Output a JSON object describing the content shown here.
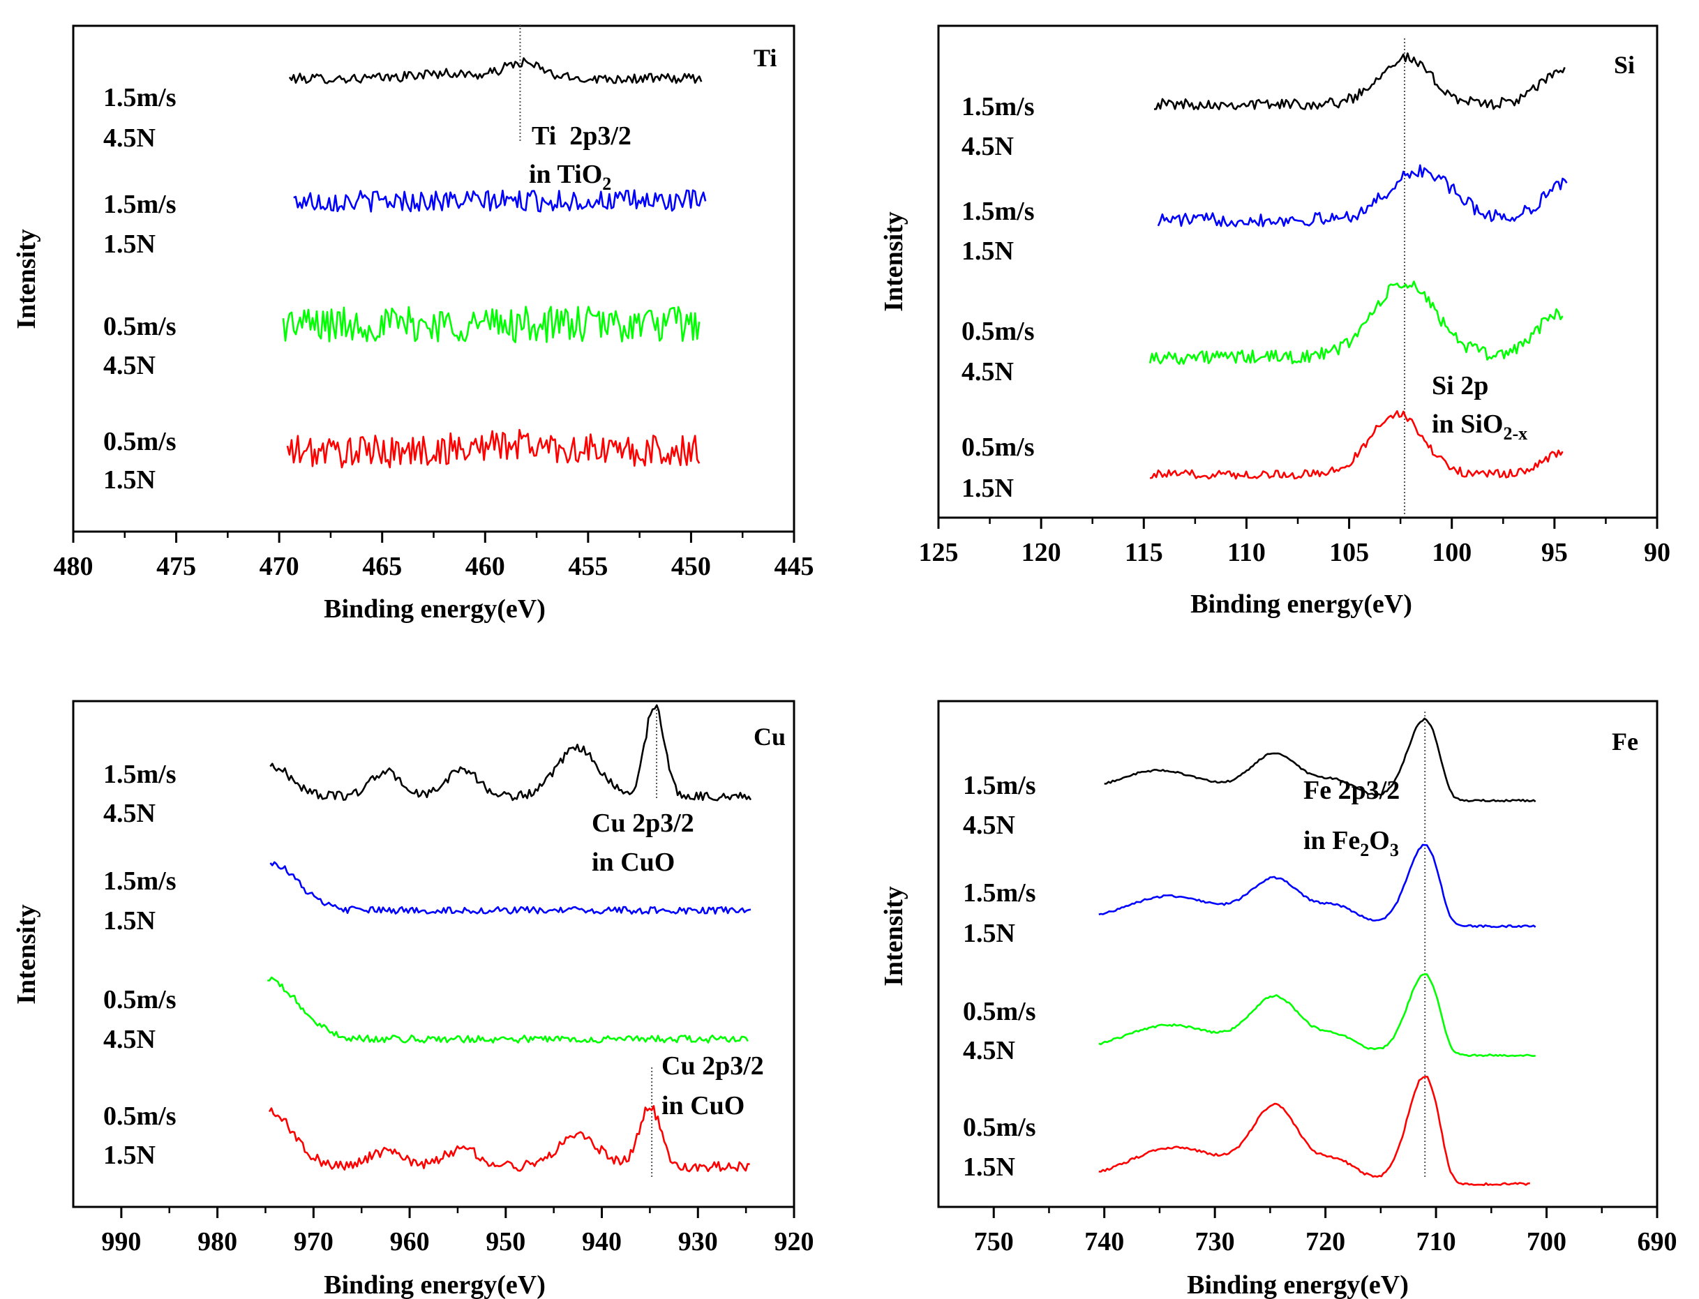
{
  "chart_data": [
    {
      "type": "line",
      "title": "Ti",
      "xlabel": "Binding energy(eV)",
      "ylabel": "Intensity",
      "xlim": [
        480,
        445
      ],
      "xticks": [
        480,
        475,
        470,
        465,
        460,
        455,
        450,
        445
      ],
      "ref_line": 458.3,
      "annotations": [
        {
          "line1": "Ti  2p3/2",
          "line2_pre": "in TiO",
          "line2_sub": "2"
        }
      ],
      "series": [
        {
          "name": "1.5m/s 4.5N",
          "speed": "1.5m/s",
          "load": "4.5N",
          "color": "#000000",
          "x_range": [
            469.5,
            449.5
          ],
          "baseline": 0.85,
          "peaks": [
            {
              "center": 458.2,
              "width": 1.3,
              "height": 0.45
            },
            {
              "center": 462.0,
              "width": 2.0,
              "height": 0.15
            }
          ],
          "slope": 0.0,
          "noise": 0.14
        },
        {
          "name": "1.5m/s 1.5N",
          "speed": "1.5m/s",
          "load": "1.5N",
          "color": "#0000ff",
          "x_range": [
            469.3,
            449.3
          ],
          "baseline": 0.6,
          "peaks": [],
          "slope": 0.0,
          "noise": 0.22
        },
        {
          "name": "0.5m/s 4.5N",
          "speed": "0.5m/s",
          "load": "4.5N",
          "color": "#00ff00",
          "x_range": [
            469.8,
            449.6
          ],
          "baseline": 0.55,
          "peaks": [],
          "slope": 0.0,
          "noise": 0.26
        },
        {
          "name": "0.5m/s 1.5N",
          "speed": "0.5m/s",
          "load": "1.5N",
          "color": "#ff0000",
          "x_range": [
            469.6,
            449.6
          ],
          "baseline": 0.5,
          "peaks": [
            {
              "center": 458.5,
              "width": 3.0,
              "height": 0.1
            }
          ],
          "slope": 0.0,
          "noise": 0.22
        }
      ]
    },
    {
      "type": "line",
      "title": "Si",
      "xlabel": "Binding energy(eV)",
      "ylabel": "Intensity",
      "xlim": [
        125,
        90
      ],
      "xticks": [
        125,
        120,
        115,
        110,
        105,
        100,
        95,
        90
      ],
      "ref_line": 102.3,
      "annotations": [
        {
          "line1": "Si 2p",
          "line2_pre": "in SiO",
          "line2_sub": "2-x"
        }
      ],
      "series": [
        {
          "name": "1.5m/s 4.5N",
          "speed": "1.5m/s",
          "load": "4.5N",
          "color": "#000000",
          "x_range": [
            114.5,
            94.5
          ],
          "baseline": 0.28,
          "peaks": [
            {
              "center": 102.3,
              "width": 1.8,
              "height": 0.6
            },
            {
              "center": 94.5,
              "width": 1.6,
              "height": 0.45
            }
          ],
          "slope": 0.0,
          "noise": 0.07
        },
        {
          "name": "1.5m/s 1.5N",
          "speed": "1.5m/s",
          "load": "1.5N",
          "color": "#0000ff",
          "x_range": [
            114.3,
            94.4
          ],
          "baseline": 0.25,
          "peaks": [
            {
              "center": 101.5,
              "width": 2.2,
              "height": 0.58
            },
            {
              "center": 94.4,
              "width": 1.6,
              "height": 0.45
            }
          ],
          "slope": 0.0,
          "noise": 0.08
        },
        {
          "name": "0.5m/s 4.5N",
          "speed": "0.5m/s",
          "load": "4.5N",
          "color": "#00ff00",
          "x_range": [
            114.7,
            94.6
          ],
          "baseline": 0.2,
          "peaks": [
            {
              "center": 102.3,
              "width": 2.2,
              "height": 0.75
            },
            {
              "center": 94.6,
              "width": 1.8,
              "height": 0.45
            }
          ],
          "slope": 0.0,
          "noise": 0.07
        },
        {
          "name": "0.5m/s 1.5N",
          "speed": "0.5m/s",
          "load": "1.5N",
          "color": "#ff0000",
          "x_range": [
            114.7,
            94.6
          ],
          "baseline": 0.12,
          "peaks": [
            {
              "center": 102.7,
              "width": 1.8,
              "height": 0.7
            },
            {
              "center": 94.6,
              "width": 1.4,
              "height": 0.25
            }
          ],
          "slope": 0.0,
          "noise": 0.05
        }
      ]
    },
    {
      "type": "line",
      "title": "Cu",
      "xlabel": "Binding energy(eV)",
      "ylabel": "Intensity",
      "xlim": [
        995,
        920
      ],
      "xticks": [
        990,
        980,
        970,
        960,
        950,
        940,
        930,
        920
      ],
      "ref_lines": [
        934.3,
        934.8
      ],
      "annotations": [
        {
          "line1": "Cu 2p3/2",
          "line2_pre": "in CuO",
          "line2_sub": ""
        },
        {
          "line1": "Cu 2p3/2",
          "line2_pre": "in CuO",
          "line2_sub": ""
        }
      ],
      "series": [
        {
          "name": "1.5m/s 4.5N",
          "speed": "1.5m/s",
          "load": "4.5N",
          "color": "#000000",
          "x_range": [
            974.5,
            924.5
          ],
          "baseline": 0.15,
          "peaks": [
            {
              "center": 974.5,
              "width": 3.0,
              "height": 0.35
            },
            {
              "center": 962.5,
              "width": 2.2,
              "height": 0.28
            },
            {
              "center": 954.5,
              "width": 2.2,
              "height": 0.32
            },
            {
              "center": 942.5,
              "width": 3.0,
              "height": 0.55
            },
            {
              "center": 934.5,
              "width": 1.4,
              "height": 1.05
            }
          ],
          "slope": 0.0,
          "noise": 0.05
        },
        {
          "name": "1.5m/s 1.5N",
          "speed": "1.5m/s",
          "load": "1.5N",
          "color": "#0000ff",
          "x_range": [
            974.5,
            924.5
          ],
          "baseline": 0.12,
          "peaks": [
            {
              "center": 974.5,
              "width": 4.0,
              "height": 0.55
            }
          ],
          "slope": 0.006,
          "noise": 0.04
        },
        {
          "name": "0.5m/s 4.5N",
          "speed": "0.5m/s",
          "load": "4.5N",
          "color": "#00ff00",
          "x_range": [
            974.8,
            924.8
          ],
          "baseline": 0.12,
          "peaks": [
            {
              "center": 974.8,
              "width": 4.5,
              "height": 0.65
            }
          ],
          "slope": 0.005,
          "noise": 0.04
        },
        {
          "name": "0.5m/s 1.5N",
          "speed": "0.5m/s",
          "load": "1.5N",
          "color": "#ff0000",
          "x_range": [
            974.6,
            924.6
          ],
          "baseline": 0.12,
          "peaks": [
            {
              "center": 974.6,
              "width": 3.5,
              "height": 0.55
            },
            {
              "center": 962.5,
              "width": 2.5,
              "height": 0.15
            },
            {
              "center": 954.5,
              "width": 2.5,
              "height": 0.18
            },
            {
              "center": 942.5,
              "width": 3.0,
              "height": 0.32
            },
            {
              "center": 935.0,
              "width": 1.6,
              "height": 0.6
            }
          ],
          "slope": 0.0,
          "noise": 0.05
        }
      ]
    },
    {
      "type": "line",
      "title": "Fe",
      "xlabel": "Binding energy(eV)",
      "ylabel": "Intensity",
      "xlim": [
        755,
        690
      ],
      "xticks": [
        750,
        740,
        730,
        720,
        710,
        700,
        690
      ],
      "ref_line": 711.0,
      "annotations": [
        {
          "line1": "Fe 2p3/2",
          "line2_pre": "in Fe",
          "line2_sub": "2",
          "line2_post": "O",
          "line2_sub2": "3"
        }
      ],
      "series": [
        {
          "name": "1.5m/s 4.5N",
          "speed": "1.5m/s",
          "load": "4.5N",
          "color": "#000000",
          "x_range": [
            740.0,
            701.0
          ],
          "baseline": 0.05,
          "peaks": [
            {
              "center": 735.0,
              "width": 6.0,
              "height": 0.33
            },
            {
              "center": 724.5,
              "width": 3.2,
              "height": 0.52
            },
            {
              "center": 719.0,
              "width": 2.5,
              "height": 0.2
            },
            {
              "center": 711.0,
              "width": 2.2,
              "height": 0.95
            }
          ],
          "slope": 0.0,
          "noise": 0.012,
          "edge": 709.0
        },
        {
          "name": "1.5m/s 1.5N",
          "speed": "1.5m/s",
          "load": "1.5N",
          "color": "#0000ff",
          "x_range": [
            740.5,
            701.0
          ],
          "baseline": 0.05,
          "peaks": [
            {
              "center": 734.0,
              "width": 6.0,
              "height": 0.33
            },
            {
              "center": 724.5,
              "width": 3.2,
              "height": 0.52
            },
            {
              "center": 719.0,
              "width": 2.5,
              "height": 0.2
            },
            {
              "center": 711.0,
              "width": 2.2,
              "height": 0.95
            }
          ],
          "slope": 0.0,
          "noise": 0.012,
          "edge": 709.0
        },
        {
          "name": "0.5m/s 4.5N",
          "speed": "0.5m/s",
          "load": "4.5N",
          "color": "#00ff00",
          "x_range": [
            740.5,
            701.0
          ],
          "baseline": 0.05,
          "peaks": [
            {
              "center": 734.0,
              "width": 6.0,
              "height": 0.33
            },
            {
              "center": 724.5,
              "width": 3.2,
              "height": 0.65
            },
            {
              "center": 719.0,
              "width": 2.5,
              "height": 0.2
            },
            {
              "center": 711.0,
              "width": 2.2,
              "height": 0.95
            }
          ],
          "slope": 0.0,
          "noise": 0.012,
          "edge": 709.0
        },
        {
          "name": "0.5m/s 1.5N",
          "speed": "0.5m/s",
          "load": "1.5N",
          "color": "#ff0000",
          "x_range": [
            740.5,
            701.5
          ],
          "baseline": 0.05,
          "peaks": [
            {
              "center": 733.5,
              "width": 6.0,
              "height": 0.33
            },
            {
              "center": 724.5,
              "width": 3.0,
              "height": 0.72
            },
            {
              "center": 719.0,
              "width": 2.5,
              "height": 0.2
            },
            {
              "center": 711.0,
              "width": 2.2,
              "height": 1.05
            }
          ],
          "slope": 0.0,
          "noise": 0.012,
          "edge": 709.0
        }
      ]
    }
  ]
}
